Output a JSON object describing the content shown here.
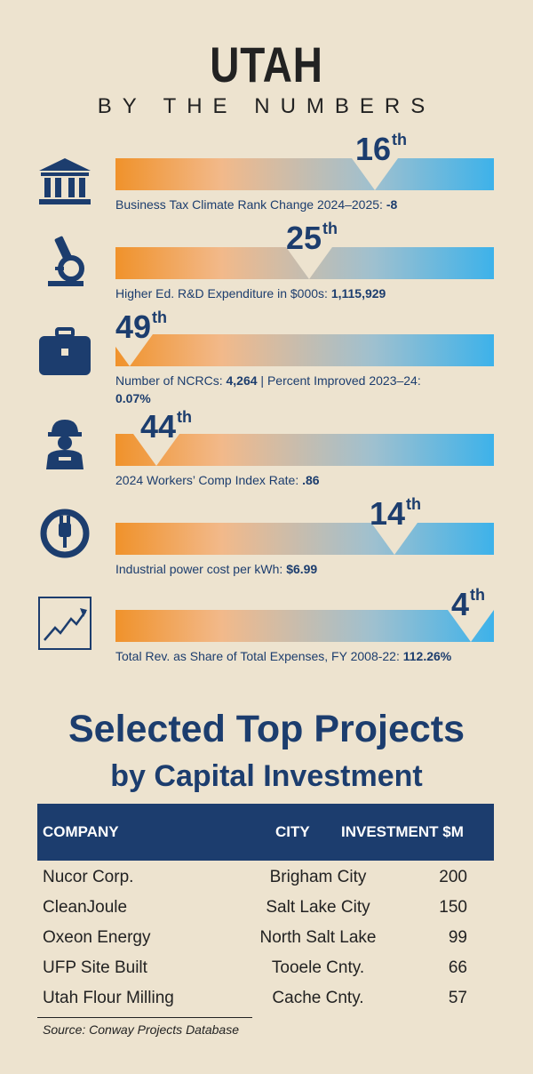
{
  "header": {
    "title": "UTAH",
    "subtitle": "BY THE NUMBERS"
  },
  "metrics": [
    {
      "icon": "bank-icon",
      "rank_num": "16",
      "rank_suffix": "th",
      "label": "Business Tax Climate Rank Change 2024–2025:",
      "value": "-8"
    },
    {
      "icon": "microscope-icon",
      "rank_num": "25",
      "rank_suffix": "th",
      "label": "Higher Ed. R&D Expenditure in $000s:",
      "value": "1,115,929"
    },
    {
      "icon": "briefcase-icon",
      "rank_num": "49",
      "rank_suffix": "th",
      "label": "Number of NCRCs:",
      "value": "4,264",
      "label2": "| Percent Improved 2023–24:",
      "value2": "0.07%"
    },
    {
      "icon": "worker-icon",
      "rank_num": "44",
      "rank_suffix": "th",
      "label": "2024 Workers’ Comp Index Rate:",
      "value": ".86"
    },
    {
      "icon": "power-plug-icon",
      "rank_num": "14",
      "rank_suffix": "th",
      "label": "Industrial power cost per kWh:",
      "value": "$6.99"
    },
    {
      "icon": "rising-chart-icon",
      "rank_num": "4",
      "rank_suffix": "th",
      "label": "Total Rev. as Share of Total Expenses, FY 2008-22:",
      "value": "112.26%"
    }
  ],
  "projects": {
    "title": "Selected Top Projects",
    "subtitle": "by Capital Investment",
    "columns": [
      "COMPANY",
      "CITY",
      "INVESTMENT $M"
    ],
    "rows": [
      [
        "Nucor Corp.",
        "Brigham City",
        "200"
      ],
      [
        "CleanJoule",
        "Salt Lake City",
        "150"
      ],
      [
        "Oxeon Energy",
        "North Salt Lake",
        "99"
      ],
      [
        "UFP Site Built",
        "Tooele Cnty.",
        "66"
      ],
      [
        "Utah Flour Milling",
        "Cache Cnty.",
        "57"
      ]
    ],
    "source": "Source: Conway Projects Database"
  },
  "colors": {
    "navy": "#1c3d6e",
    "orange": "#f0922b",
    "blue": "#3db2ea",
    "background": "#ede3cf"
  }
}
